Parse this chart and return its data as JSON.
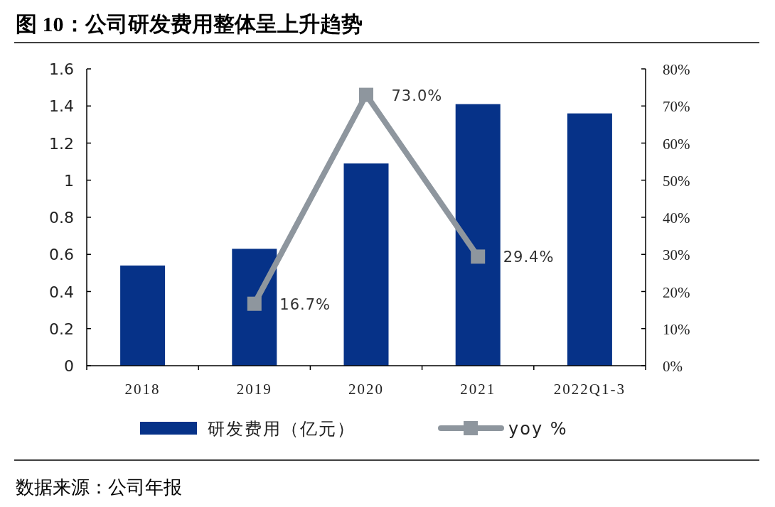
{
  "chart_data": {
    "type": "bar",
    "title": "图 10：公司研发费用整体呈上升趋势",
    "categories": [
      "2018",
      "2019",
      "2020",
      "2021",
      "2022Q1-3"
    ],
    "series": [
      {
        "name": "研发费用（亿元）",
        "color": "#063288",
        "values": [
          0.54,
          0.63,
          1.09,
          1.41,
          1.36
        ]
      },
      {
        "name": "yoy %",
        "type": "line",
        "axis": "y2",
        "color": "#8e969e",
        "marker": "square",
        "values": [
          null,
          16.7,
          73.0,
          29.4,
          null
        ],
        "value_labels": [
          null,
          "16.7%",
          "73.0%",
          "29.4%",
          null
        ]
      }
    ],
    "ylim": [
      0,
      1.6
    ],
    "yticks": [
      0,
      0.2,
      0.4,
      0.6,
      0.8,
      1,
      1.2,
      1.4,
      1.6
    ],
    "y2lim": [
      0,
      80
    ],
    "y2ticks": [
      {
        "value": 0,
        "label": "0%"
      },
      {
        "value": 10,
        "label": "10%"
      },
      {
        "value": 20,
        "label": "20%"
      },
      {
        "value": 30,
        "label": "30%"
      },
      {
        "value": 40,
        "label": "40%"
      },
      {
        "value": 50,
        "label": "50%"
      },
      {
        "value": 60,
        "label": "60%"
      },
      {
        "value": 70,
        "label": "70%"
      },
      {
        "value": 80,
        "label": "80%"
      }
    ],
    "legend": "bottom",
    "grid": false,
    "annotations": [
      "数据来源：公司年报"
    ]
  }
}
